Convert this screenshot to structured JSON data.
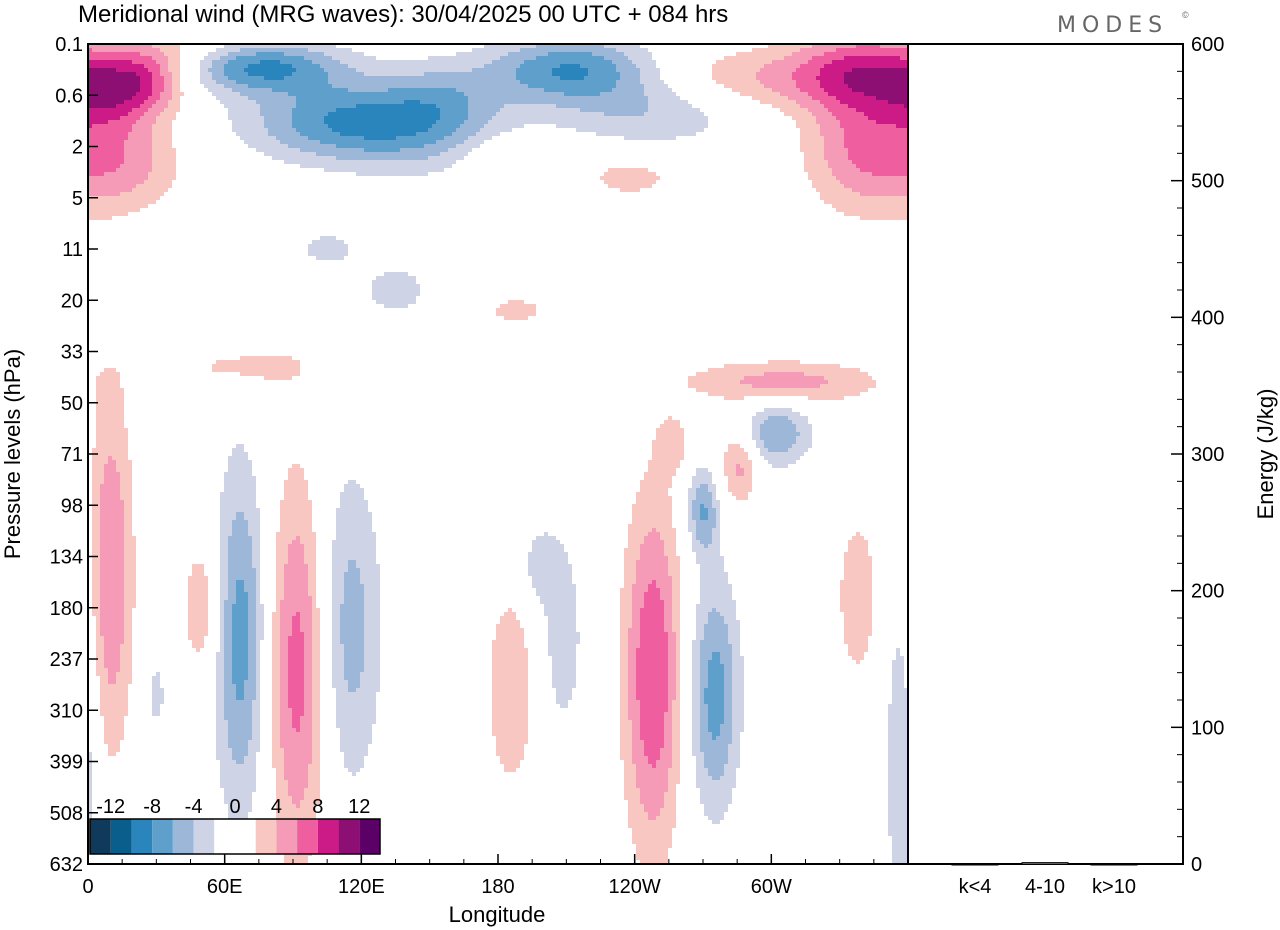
{
  "header": {
    "title": "Meridional wind (MRG waves):  30/04/2025  00 UTC  + 084 hrs",
    "logo": "MODES",
    "logo_mark": "©"
  },
  "chart_data": [
    {
      "type": "heatmap",
      "title": "Meridional wind (MRG waves):  30/04/2025  00 UTC  + 084 hrs",
      "xlabel": "Longitude",
      "ylabel": "Pressure levels (hPa)",
      "x_ticks": [
        "0",
        "60E",
        "120E",
        "180",
        "120W",
        "60W"
      ],
      "x_tick_values": [
        0,
        60,
        120,
        180,
        240,
        300
      ],
      "xlim": [
        0,
        360
      ],
      "y_ticks": [
        "0.1",
        "0.6",
        "2",
        "5",
        "11",
        "20",
        "33",
        "50",
        "71",
        "98",
        "134",
        "180",
        "237",
        "310",
        "399",
        "508",
        "632"
      ],
      "y_axis": "pressure levels, top to bottom",
      "colorbar": {
        "labels": [
          "-12",
          "-8",
          "-4",
          "0",
          "4",
          "8",
          "12"
        ],
        "label_values": [
          -12,
          -8,
          -4,
          0,
          4,
          8,
          12
        ],
        "levels": [
          -14,
          -12,
          -10,
          -8,
          -6,
          -4,
          -2,
          0,
          2,
          4,
          6,
          8,
          10,
          12,
          14
        ],
        "colors": [
          "#0f3a5c",
          "#0a5e8c",
          "#2a85bd",
          "#5e9fcc",
          "#9db7d8",
          "#ced4e6",
          "#ffffff",
          "#ffffff",
          "#f9c7c2",
          "#f59bb8",
          "#ef5f9f",
          "#cc1b86",
          "#8e0f74",
          "#5a0066"
        ]
      },
      "features": [
        {
          "lon": 8,
          "lev": 1.0,
          "amp": 5,
          "sx": 14,
          "sy": 0.5
        },
        {
          "lon": 25,
          "lev": 0.7,
          "amp": 6,
          "sx": 13,
          "sy": 0.45
        },
        {
          "lon": 15,
          "lev": 2.3,
          "amp": 5,
          "sx": 18,
          "sy": 0.7
        },
        {
          "lon": 42,
          "lev": 0.3,
          "amp": 4,
          "sx": 20,
          "sy": 0.4
        },
        {
          "lon": 57,
          "lev": 0.45,
          "amp": -4,
          "sx": 25,
          "sy": 0.35
        },
        {
          "lon": 80,
          "lev": 0.45,
          "amp": -6,
          "sx": 25,
          "sy": 0.35
        },
        {
          "lon": 110,
          "lev": 1.5,
          "amp": -7,
          "sx": 30,
          "sy": 0.55
        },
        {
          "lon": 148,
          "lev": 1.7,
          "amp": -4,
          "sx": 28,
          "sy": 0.6
        },
        {
          "lon": 155,
          "lev": 1.0,
          "amp": -3,
          "sx": 18,
          "sy": 0.5
        },
        {
          "lon": 185,
          "lev": 2.2,
          "amp": 3,
          "sx": 14,
          "sy": 0.3
        },
        {
          "lon": 212,
          "lev": 0.5,
          "amp": -8,
          "sx": 26,
          "sy": 0.45
        },
        {
          "lon": 248,
          "lev": 1.3,
          "amp": -4,
          "sx": 30,
          "sy": 0.5
        },
        {
          "lon": 238,
          "lev": 2.6,
          "amp": 3,
          "sx": 15,
          "sy": 0.3
        },
        {
          "lon": 292,
          "lev": 0.7,
          "amp": 4,
          "sx": 35,
          "sy": 0.45
        },
        {
          "lon": 342,
          "lev": 0.5,
          "amp": 7,
          "sx": 22,
          "sy": 0.55
        },
        {
          "lon": 340,
          "lev": 2.0,
          "amp": 6,
          "sx": 18,
          "sy": 0.9
        },
        {
          "lon": 105,
          "lev": 4.0,
          "amp": -3,
          "sx": 10,
          "sy": 0.25
        },
        {
          "lon": 135,
          "lev": 4.8,
          "amp": -3,
          "sx": 12,
          "sy": 0.4
        },
        {
          "lon": 188,
          "lev": 5.2,
          "amp": 3,
          "sx": 10,
          "sy": 0.2
        },
        {
          "lon": 70,
          "lev": 6.3,
          "amp": 3,
          "sx": 20,
          "sy": 0.3
        },
        {
          "lon": 305,
          "lev": 6.6,
          "amp": 5,
          "sx": 30,
          "sy": 0.3
        },
        {
          "lon": 302,
          "lev": 7.6,
          "amp": -6,
          "sx": 11,
          "sy": 0.45
        },
        {
          "lon": 257,
          "lev": 7.8,
          "amp": 3,
          "sx": 5,
          "sy": 0.4
        },
        {
          "lon": 286,
          "lev": 8.2,
          "amp": 5,
          "sx": 6,
          "sy": 0.55
        },
        {
          "lon": 270,
          "lev": 9.1,
          "amp": -6,
          "sx": 5,
          "sy": 0.6
        },
        {
          "lon": 10,
          "lev": 10.3,
          "amp": 6,
          "sx": 7,
          "sy": 2.5
        },
        {
          "lon": 50,
          "lev": 11.0,
          "amp": 4,
          "sx": 6,
          "sy": 0.9
        },
        {
          "lon": 67,
          "lev": 11.6,
          "amp": -7,
          "sx": 8,
          "sy": 2.4
        },
        {
          "lon": 92,
          "lev": 12.2,
          "amp": 7,
          "sx": 9,
          "sy": 2.6
        },
        {
          "lon": 115,
          "lev": 11.4,
          "amp": -5,
          "sx": 10,
          "sy": 2.2
        },
        {
          "lon": 186,
          "lev": 12.6,
          "amp": 4,
          "sx": 8,
          "sy": 1.4
        },
        {
          "lon": 208,
          "lev": 11.6,
          "amp": -3,
          "sx": 8,
          "sy": 1.6
        },
        {
          "lon": 248,
          "lev": 12.3,
          "amp": 8,
          "sx": 9,
          "sy": 2.4
        },
        {
          "lon": 275,
          "lev": 12.7,
          "amp": -7,
          "sx": 8,
          "sy": 1.6
        },
        {
          "lon": 338,
          "lev": 10.8,
          "amp": 3,
          "sx": 8,
          "sy": 1.4
        },
        {
          "lon": 357,
          "lev": 13.8,
          "amp": -4,
          "sx": 5,
          "sy": 2.6
        },
        {
          "lon": 198,
          "lev": 10.2,
          "amp": -3,
          "sx": 6,
          "sy": 0.5
        },
        {
          "lon": 30,
          "lev": 12.7,
          "amp": -3,
          "sx": 3,
          "sy": 0.5
        }
      ]
    },
    {
      "type": "bar",
      "categories": [
        "k<4",
        "4-10",
        "k>10"
      ],
      "values": [
        0,
        1,
        0
      ],
      "ylabel": "Energy (J/kg)",
      "ylim": [
        0,
        600
      ],
      "y_ticks": [
        0,
        100,
        200,
        300,
        400,
        500,
        600
      ]
    }
  ]
}
